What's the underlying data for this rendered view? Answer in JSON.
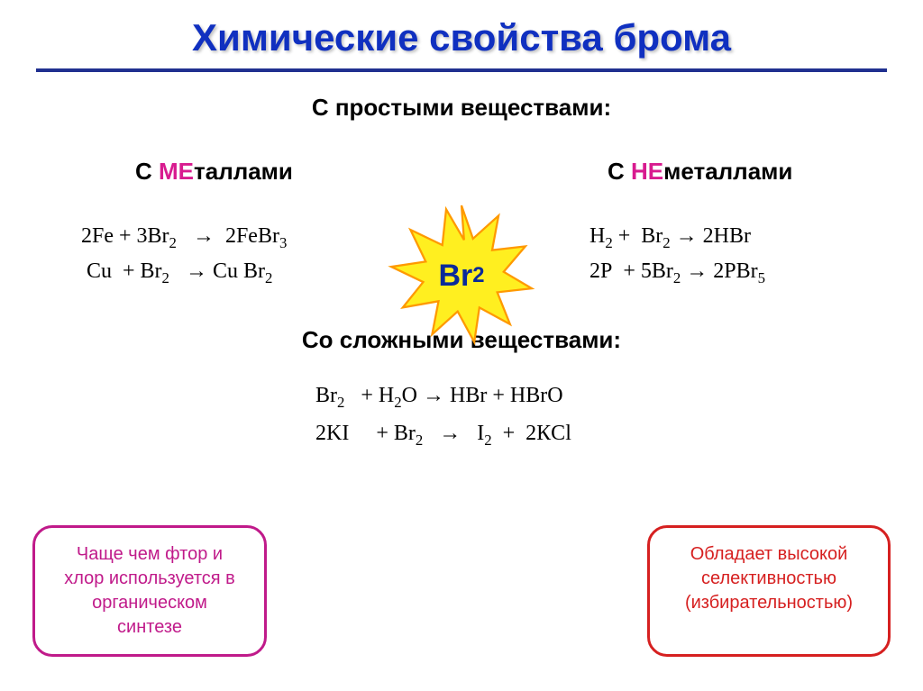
{
  "title": {
    "text": "Химические свойства брома",
    "color": "#1030c0"
  },
  "hr_color": "#203090",
  "subtitle_simple": "С простыми веществами:",
  "columns": {
    "left": {
      "prefix": "МЕ",
      "suffix": "таллами",
      "prefix_color": "#d81b8f",
      "eq1_html": "2Fe + 3Br<sub>2</sub>&nbsp;&nbsp;&nbsp;→&nbsp;&nbsp;2FeBr<sub>3</sub>",
      "eq2_html": "&nbsp;Cu&nbsp;&nbsp;+ Br<sub>2</sub>&nbsp;&nbsp;&nbsp;→ Cu Br<sub>2</sub>"
    },
    "right": {
      "prefix": "НЕ",
      "suffix": "металлами",
      "prefix_color": "#d81b8f",
      "eq1_html": "H<sub>2</sub> +&nbsp;&nbsp;Br<sub>2</sub> → 2HBr",
      "eq2_html": "2P&nbsp;&nbsp;+ 5Br<sub>2</sub> → 2PBr<sub>5</sub>"
    }
  },
  "star": {
    "label_html": "Br<sub>2</sub>",
    "fill": "#ffef20",
    "stroke": "#ff9900",
    "label_color": "#0a2a9a"
  },
  "subtitle_complex": "Со сложными веществами:",
  "complex": {
    "eq1_html": "Br<sub>2</sub>&nbsp;&nbsp;&nbsp;+ H<sub>2</sub>O → HBr + HBrO",
    "eq2_html": "2KI&nbsp;&nbsp;&nbsp;&nbsp;&nbsp;+ Br<sub>2</sub>&nbsp;&nbsp;&nbsp;→&nbsp;&nbsp;&nbsp;I<sub>2</sub>&nbsp;&nbsp;+&nbsp;&nbsp;2КCl"
  },
  "boxes": {
    "left": {
      "text_html": "Чаще чем фтор и<br>хлор используется в<br>органическом<br>синтезе",
      "color": "#c01a8a"
    },
    "right": {
      "text_html": "Обладает высокой<br>селективностью<br>(избирательностью)",
      "color": "#d62020"
    }
  }
}
